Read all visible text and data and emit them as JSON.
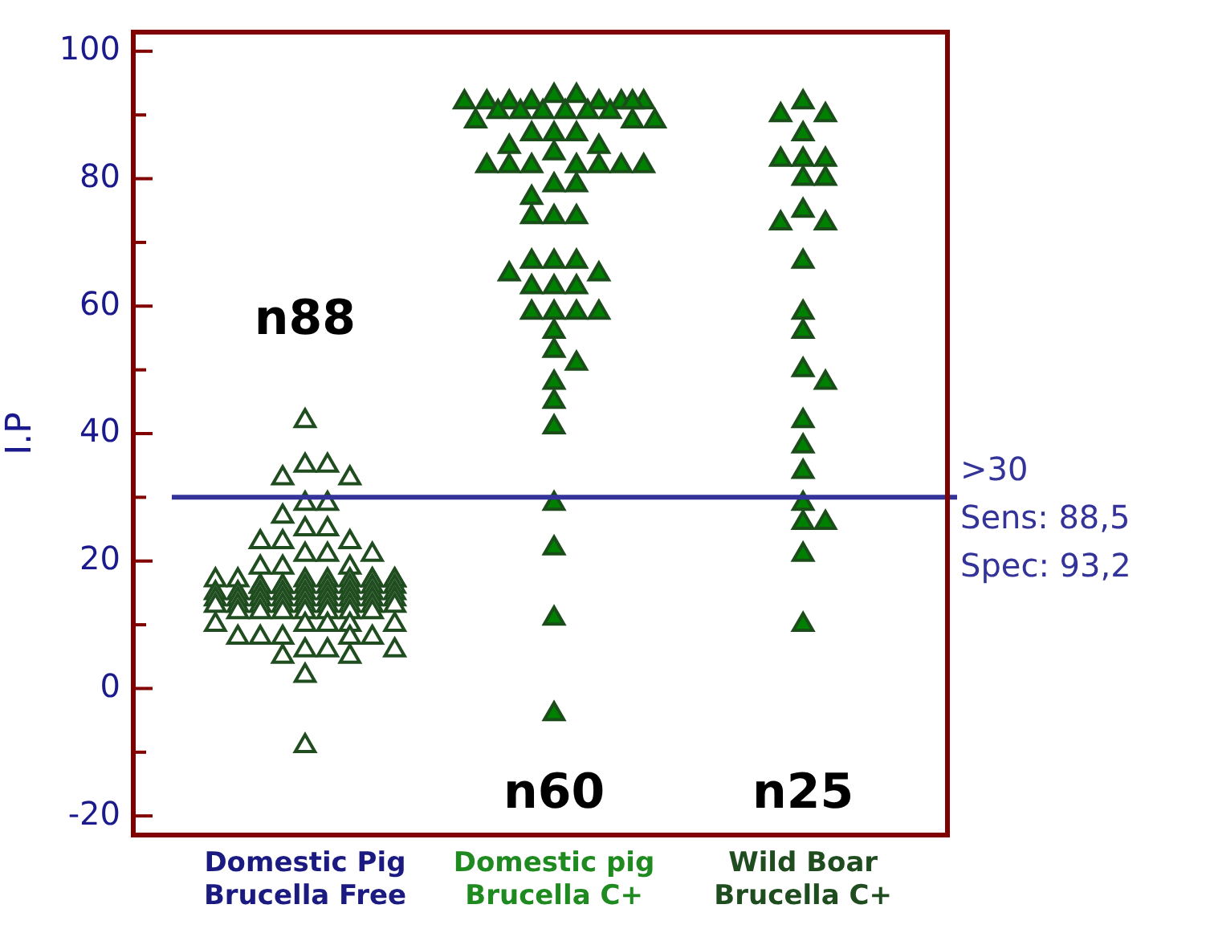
{
  "chart_data": {
    "type": "scatter",
    "ylabel": "I.P",
    "marker": "triangle",
    "grid": false,
    "legend": false,
    "categories": [
      "Domestic Pig\nBrucella Free",
      "Domestic pig\nBrucella C+",
      "Wild Boar\nBrucella C+"
    ],
    "ylim": [
      -23,
      103
    ],
    "yticks": [
      {
        "value": -20,
        "label": "-20"
      },
      {
        "value": -10,
        "label": null
      },
      {
        "value": 0,
        "label": "0"
      },
      {
        "value": 10,
        "label": null
      },
      {
        "value": 20,
        "label": "20"
      },
      {
        "value": 30,
        "label": null
      },
      {
        "value": 40,
        "label": "40"
      },
      {
        "value": 50,
        "label": null
      },
      {
        "value": 60,
        "label": "60"
      },
      {
        "value": 70,
        "label": null
      },
      {
        "value": 80,
        "label": "80"
      },
      {
        "value": 90,
        "label": null
      },
      {
        "value": 100,
        "label": "100"
      }
    ],
    "series": [
      {
        "color": "#1f4d1f",
        "x": [
          "Domestic Pig\nBrucella Free",
          "Domestic Pig\nBrucella Free",
          "Domestic Pig\nBrucella Free",
          "Domestic Pig\nBrucella Free",
          "Domestic Pig\nBrucella Free",
          "Domestic Pig\nBrucella Free",
          "Domestic Pig\nBrucella Free",
          "Domestic Pig\nBrucella Free",
          "Domestic Pig\nBrucella Free",
          "Domestic Pig\nBrucella Free",
          "Domestic Pig\nBrucella Free",
          "Domestic Pig\nBrucella Free",
          "Domestic Pig\nBrucella Free",
          "Domestic Pig\nBrucella Free",
          "Domestic Pig\nBrucella Free",
          "Domestic Pig\nBrucella Free",
          "Domestic Pig\nBrucella Free",
          "Domestic Pig\nBrucella Free",
          "Domestic Pig\nBrucella Free",
          "Domestic Pig\nBrucella Free",
          "Domestic Pig\nBrucella Free",
          "Domestic Pig\nBrucella Free",
          "Domestic Pig\nBrucella Free",
          "Domestic Pig\nBrucella Free",
          "Domestic Pig\nBrucella Free",
          "Domestic Pig\nBrucella Free",
          "Domestic Pig\nBrucella Free",
          "Domestic Pig\nBrucella Free",
          "Domestic Pig\nBrucella Free",
          "Domestic Pig\nBrucella Free",
          "Domestic Pig\nBrucella Free",
          "Domestic Pig\nBrucella Free",
          "Domestic Pig\nBrucella Free",
          "Domestic Pig\nBrucella Free",
          "Domestic Pig\nBrucella Free",
          "Domestic Pig\nBrucella Free",
          "Domestic Pig\nBrucella Free",
          "Domestic Pig\nBrucella Free",
          "Domestic Pig\nBrucella Free",
          "Domestic Pig\nBrucella Free",
          "Domestic Pig\nBrucella Free",
          "Domestic Pig\nBrucella Free",
          "Domestic Pig\nBrucella Free",
          "Domestic Pig\nBrucella Free",
          "Domestic Pig\nBrucella Free",
          "Domestic Pig\nBrucella Free",
          "Domestic Pig\nBrucella Free",
          "Domestic Pig\nBrucella Free",
          "Domestic Pig\nBrucella Free",
          "Domestic Pig\nBrucella Free",
          "Domestic Pig\nBrucella Free",
          "Domestic Pig\nBrucella Free",
          "Domestic Pig\nBrucella Free",
          "Domestic Pig\nBrucella Free",
          "Domestic Pig\nBrucella Free",
          "Domestic Pig\nBrucella Free",
          "Domestic Pig\nBrucella Free",
          "Domestic Pig\nBrucella Free",
          "Domestic Pig\nBrucella Free",
          "Domestic Pig\nBrucella Free",
          "Domestic Pig\nBrucella Free",
          "Domestic Pig\nBrucella Free",
          "Domestic Pig\nBrucella Free",
          "Domestic Pig\nBrucella Free",
          "Domestic Pig\nBrucella Free",
          "Domestic Pig\nBrucella Free",
          "Domestic Pig\nBrucella Free",
          "Domestic Pig\nBrucella Free",
          "Domestic Pig\nBrucella Free",
          "Domestic Pig\nBrucella Free",
          "Domestic Pig\nBrucella Free",
          "Domestic Pig\nBrucella Free",
          "Domestic Pig\nBrucella Free",
          "Domestic Pig\nBrucella Free",
          "Domestic Pig\nBrucella Free",
          "Domestic Pig\nBrucella Free",
          "Domestic Pig\nBrucella Free",
          "Domestic Pig\nBrucella Free",
          "Domestic Pig\nBrucella Free",
          "Domestic Pig\nBrucella Free",
          "Domestic Pig\nBrucella Free",
          "Domestic Pig\nBrucella Free",
          "Domestic Pig\nBrucella Free",
          "Domestic Pig\nBrucella Free",
          "Domestic Pig\nBrucella Free",
          "Domestic Pig\nBrucella Free",
          "Domestic Pig\nBrucella Free",
          "Domestic Pig\nBrucella Free"
        ],
        "values": [
          42,
          35,
          35,
          33,
          33,
          29,
          29,
          27,
          25,
          25,
          23,
          23,
          23,
          21,
          21,
          21,
          19,
          19,
          19,
          17,
          17,
          17,
          17,
          17,
          17,
          17,
          17,
          17,
          16,
          16,
          16,
          16,
          16,
          16,
          16,
          16,
          16,
          15,
          15,
          15,
          15,
          15,
          15,
          15,
          15,
          15,
          14,
          14,
          14,
          14,
          14,
          14,
          14,
          14,
          14,
          13,
          13,
          13,
          13,
          13,
          13,
          13,
          13,
          13,
          12,
          12,
          12,
          12,
          12,
          12,
          12,
          10,
          10,
          10,
          10,
          10,
          8,
          8,
          8,
          8,
          8,
          6,
          6,
          6,
          5,
          5,
          2,
          -9
        ]
      },
      {
        "color": "#008000",
        "x": [
          "Domestic pig\nBrucella C+",
          "Domestic pig\nBrucella C+",
          "Domestic pig\nBrucella C+",
          "Domestic pig\nBrucella C+",
          "Domestic pig\nBrucella C+",
          "Domestic pig\nBrucella C+",
          "Domestic pig\nBrucella C+",
          "Domestic pig\nBrucella C+",
          "Domestic pig\nBrucella C+",
          "Domestic pig\nBrucella C+",
          "Domestic pig\nBrucella C+",
          "Domestic pig\nBrucella C+",
          "Domestic pig\nBrucella C+",
          "Domestic pig\nBrucella C+",
          "Domestic pig\nBrucella C+",
          "Domestic pig\nBrucella C+",
          "Domestic pig\nBrucella C+",
          "Domestic pig\nBrucella C+",
          "Domestic pig\nBrucella C+",
          "Domestic pig\nBrucella C+",
          "Domestic pig\nBrucella C+",
          "Domestic pig\nBrucella C+",
          "Domestic pig\nBrucella C+",
          "Domestic pig\nBrucella C+",
          "Domestic pig\nBrucella C+",
          "Domestic pig\nBrucella C+",
          "Domestic pig\nBrucella C+",
          "Domestic pig\nBrucella C+",
          "Domestic pig\nBrucella C+",
          "Domestic pig\nBrucella C+",
          "Domestic pig\nBrucella C+",
          "Domestic pig\nBrucella C+",
          "Domestic pig\nBrucella C+",
          "Domestic pig\nBrucella C+",
          "Domestic pig\nBrucella C+",
          "Domestic pig\nBrucella C+",
          "Domestic pig\nBrucella C+",
          "Domestic pig\nBrucella C+",
          "Domestic pig\nBrucella C+",
          "Domestic pig\nBrucella C+",
          "Domestic pig\nBrucella C+",
          "Domestic pig\nBrucella C+",
          "Domestic pig\nBrucella C+",
          "Domestic pig\nBrucella C+",
          "Domestic pig\nBrucella C+",
          "Domestic pig\nBrucella C+",
          "Domestic pig\nBrucella C+",
          "Domestic pig\nBrucella C+",
          "Domestic pig\nBrucella C+",
          "Domestic pig\nBrucella C+",
          "Domestic pig\nBrucella C+",
          "Domestic pig\nBrucella C+",
          "Domestic pig\nBrucella C+",
          "Domestic pig\nBrucella C+",
          "Domestic pig\nBrucella C+",
          "Domestic pig\nBrucella C+",
          "Domestic pig\nBrucella C+",
          "Domestic pig\nBrucella C+",
          "Domestic pig\nBrucella C+",
          "Domestic pig\nBrucella C+"
        ],
        "values": [
          93,
          93,
          92,
          92,
          92,
          92,
          92,
          92,
          92,
          92,
          90.5,
          90.5,
          90.5,
          90.5,
          90.5,
          90.5,
          89,
          89,
          89,
          87,
          87,
          87,
          85,
          85,
          84,
          82,
          82,
          82,
          82,
          82,
          82,
          82,
          79,
          79,
          77,
          74,
          74,
          74,
          67,
          67,
          67,
          65,
          65,
          63,
          63,
          63,
          59,
          59,
          59,
          59,
          56,
          53,
          51,
          48,
          45,
          41,
          29,
          22,
          11,
          -4
        ]
      },
      {
        "color": "#008000",
        "x": [
          "Wild Boar\nBrucella C+",
          "Wild Boar\nBrucella C+",
          "Wild Boar\nBrucella C+",
          "Wild Boar\nBrucella C+",
          "Wild Boar\nBrucella C+",
          "Wild Boar\nBrucella C+",
          "Wild Boar\nBrucella C+",
          "Wild Boar\nBrucella C+",
          "Wild Boar\nBrucella C+",
          "Wild Boar\nBrucella C+",
          "Wild Boar\nBrucella C+",
          "Wild Boar\nBrucella C+",
          "Wild Boar\nBrucella C+",
          "Wild Boar\nBrucella C+",
          "Wild Boar\nBrucella C+",
          "Wild Boar\nBrucella C+",
          "Wild Boar\nBrucella C+",
          "Wild Boar\nBrucella C+",
          "Wild Boar\nBrucella C+",
          "Wild Boar\nBrucella C+",
          "Wild Boar\nBrucella C+",
          "Wild Boar\nBrucella C+",
          "Wild Boar\nBrucella C+",
          "Wild Boar\nBrucella C+",
          "Wild Boar\nBrucella C+"
        ],
        "values": [
          92,
          90,
          90,
          87,
          83,
          83,
          83,
          80,
          80,
          75,
          73,
          73,
          67,
          59,
          56,
          50,
          48,
          42,
          38,
          34,
          29,
          26,
          26,
          21,
          10
        ]
      }
    ],
    "ref_lines": [
      {
        "axis": "y",
        "value": 30,
        "label": ">30\nSens: 88,5\nSpec: 93,2",
        "color": "#333399"
      }
    ],
    "annotations": [
      "n88",
      "n60",
      "n25"
    ]
  }
}
